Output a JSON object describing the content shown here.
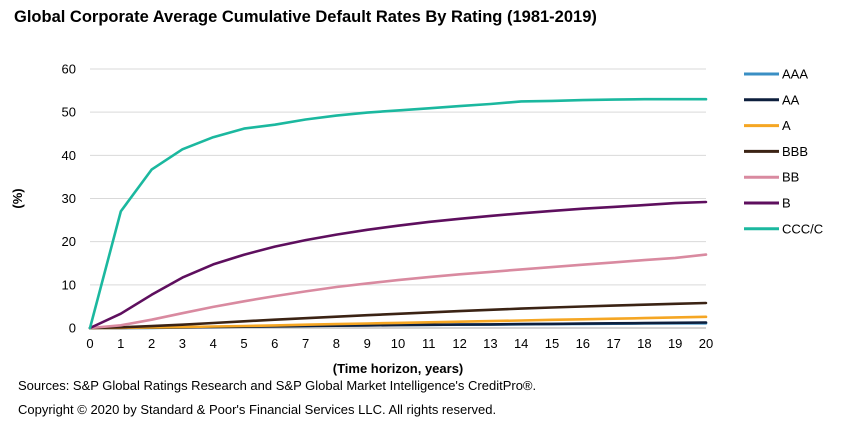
{
  "chart_data": {
    "type": "line",
    "title": "Global Corporate Average Cumulative Default Rates By Rating (1981-2019)",
    "xlabel": "(Time horizon, years)",
    "ylabel": "(%)",
    "xlim": [
      0,
      20
    ],
    "ylim": [
      0,
      60
    ],
    "x": [
      0,
      1,
      2,
      3,
      4,
      5,
      6,
      7,
      8,
      9,
      10,
      11,
      12,
      13,
      14,
      15,
      16,
      17,
      18,
      19,
      20
    ],
    "xticks": [
      "0",
      "1",
      "2",
      "3",
      "4",
      "5",
      "6",
      "7",
      "8",
      "9",
      "10",
      "11",
      "12",
      "13",
      "14",
      "15",
      "16",
      "17",
      "18",
      "19",
      "20"
    ],
    "yticks": [
      "0",
      "10",
      "20",
      "30",
      "40",
      "50",
      "60"
    ],
    "grid": "horizontal",
    "legend_position": "right",
    "series": [
      {
        "name": "AAA",
        "color": "#3a8fc4",
        "values": [
          0,
          0.0,
          0.03,
          0.13,
          0.24,
          0.35,
          0.45,
          0.51,
          0.59,
          0.65,
          0.7,
          0.73,
          0.76,
          0.79,
          0.85,
          0.9,
          0.94,
          0.99,
          1.04,
          1.1,
          1.1
        ]
      },
      {
        "name": "AA",
        "color": "#0d1f3d",
        "values": [
          0,
          0.02,
          0.06,
          0.11,
          0.2,
          0.3,
          0.4,
          0.47,
          0.54,
          0.61,
          0.68,
          0.73,
          0.79,
          0.84,
          0.9,
          0.95,
          1.01,
          1.08,
          1.14,
          1.21,
          1.28
        ]
      },
      {
        "name": "A",
        "color": "#f5a623",
        "values": [
          0,
          0.05,
          0.13,
          0.22,
          0.34,
          0.46,
          0.6,
          0.76,
          0.9,
          1.04,
          1.19,
          1.33,
          1.46,
          1.59,
          1.74,
          1.89,
          2.02,
          2.15,
          2.3,
          2.45,
          2.6
        ]
      },
      {
        "name": "BBB",
        "color": "#3b2314",
        "values": [
          0,
          0.16,
          0.45,
          0.77,
          1.16,
          1.55,
          1.93,
          2.27,
          2.62,
          2.96,
          3.29,
          3.62,
          3.91,
          4.22,
          4.5,
          4.75,
          4.98,
          5.2,
          5.4,
          5.6,
          5.8
        ]
      },
      {
        "name": "BB",
        "color": "#d98aa0",
        "values": [
          0,
          0.63,
          1.93,
          3.42,
          4.88,
          6.19,
          7.39,
          8.47,
          9.49,
          10.34,
          11.1,
          11.8,
          12.43,
          13.0,
          13.58,
          14.1,
          14.66,
          15.2,
          15.72,
          16.25,
          17.0
        ]
      },
      {
        "name": "B",
        "color": "#5e0f5e",
        "values": [
          0,
          3.31,
          7.68,
          11.67,
          14.74,
          16.98,
          18.85,
          20.37,
          21.63,
          22.74,
          23.71,
          24.59,
          25.29,
          25.97,
          26.57,
          27.12,
          27.64,
          28.06,
          28.48,
          28.93,
          29.2
        ]
      },
      {
        "name": "CCC/C",
        "color": "#1bb89f",
        "values": [
          0,
          27.0,
          36.7,
          41.4,
          44.2,
          46.2,
          47.1,
          48.3,
          49.2,
          49.9,
          50.4,
          50.9,
          51.4,
          51.9,
          52.5,
          52.6,
          52.8,
          52.9,
          53.0,
          53.0,
          53.0
        ]
      }
    ]
  },
  "footer": {
    "sources": "Sources: S&P Global Ratings Research and S&P Global Market Intelligence's CreditPro®.",
    "copyright": "Copyright © 2020 by Standard & Poor's Financial Services LLC. All rights reserved."
  }
}
